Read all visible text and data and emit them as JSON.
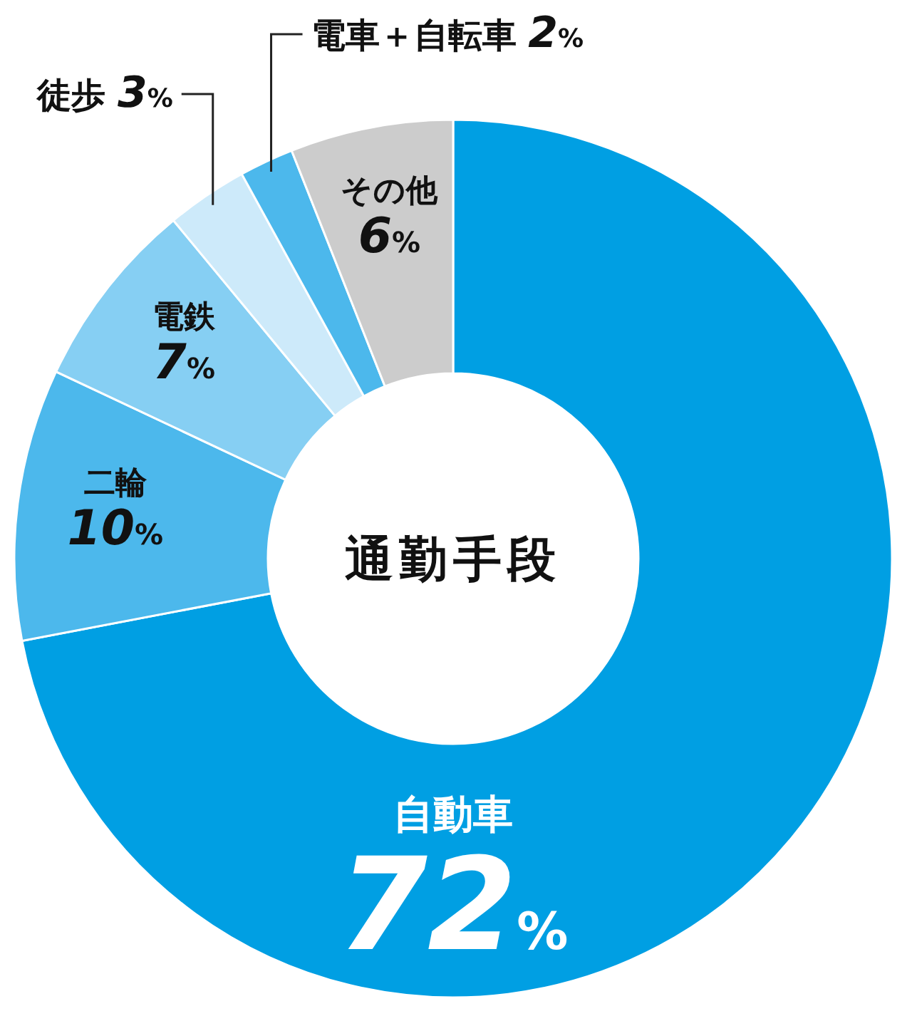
{
  "chart_data": {
    "type": "donut",
    "title": "通勤手段",
    "value_labels": [
      "72%",
      "10%",
      "7%",
      "3%",
      "2%",
      "6%"
    ],
    "categories": [
      "自動車",
      "二輪",
      "電鉄",
      "徒歩",
      "電車＋自転車",
      "その他"
    ],
    "values": [
      72,
      10,
      7,
      3,
      2,
      6
    ],
    "colors": [
      "#009fe3",
      "#4cb8ec",
      "#86cff3",
      "#cdeafa",
      "#4cb8ec",
      "#cccccc"
    ]
  }
}
